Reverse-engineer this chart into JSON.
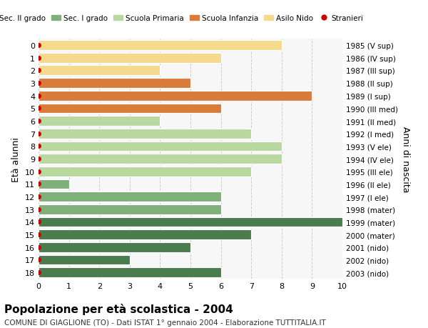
{
  "ages": [
    18,
    17,
    16,
    15,
    14,
    13,
    12,
    11,
    10,
    9,
    8,
    7,
    6,
    5,
    4,
    3,
    2,
    1,
    0
  ],
  "right_labels": [
    "1985 (V sup)",
    "1986 (IV sup)",
    "1987 (III sup)",
    "1988 (II sup)",
    "1989 (I sup)",
    "1990 (III med)",
    "1991 (II med)",
    "1992 (I med)",
    "1993 (V ele)",
    "1994 (IV ele)",
    "1995 (III ele)",
    "1996 (II ele)",
    "1997 (I ele)",
    "1998 (mater)",
    "1999 (mater)",
    "2000 (mater)",
    "2001 (nido)",
    "2002 (nido)",
    "2003 (nido)"
  ],
  "values": [
    6,
    3,
    5,
    7,
    10,
    6,
    6,
    1,
    7,
    8,
    8,
    7,
    4,
    6,
    9,
    5,
    4,
    6,
    8
  ],
  "bar_colors": [
    "#4a7c4e",
    "#4a7c4e",
    "#4a7c4e",
    "#4a7c4e",
    "#4a7c4e",
    "#7fb07a",
    "#7fb07a",
    "#7fb07a",
    "#b8d8a0",
    "#b8d8a0",
    "#b8d8a0",
    "#b8d8a0",
    "#b8d8a0",
    "#d97b3a",
    "#d97b3a",
    "#d97b3a",
    "#f5d98c",
    "#f5d98c",
    "#f5d98c"
  ],
  "legend_labels": [
    "Sec. II grado",
    "Sec. I grado",
    "Scuola Primaria",
    "Scuola Infanzia",
    "Asilo Nido",
    "Stranieri"
  ],
  "legend_colors": [
    "#4a7c4e",
    "#7fb07a",
    "#b8d8a0",
    "#d97b3a",
    "#f5d98c",
    "#cc0000"
  ],
  "legend_markers": [
    "s",
    "s",
    "s",
    "s",
    "s",
    "o"
  ],
  "ylabel_left": "Età alunni",
  "ylabel_right": "Anni di nascita",
  "title": "Popolazione per età scolastica - 2004",
  "subtitle": "COMUNE DI GIAGLIONE (TO) - Dati ISTAT 1° gennaio 2004 - Elaborazione TUTTITALIA.IT",
  "xlim": [
    0,
    10
  ],
  "xticks": [
    0,
    1,
    2,
    3,
    4,
    5,
    6,
    7,
    8,
    9,
    10
  ],
  "bar_height": 0.78,
  "stranieri_dot_color": "#cc0000",
  "grid_color": "#cccccc",
  "bg_color": "#f7f7f7",
  "bar_edge_color": "#ffffff"
}
